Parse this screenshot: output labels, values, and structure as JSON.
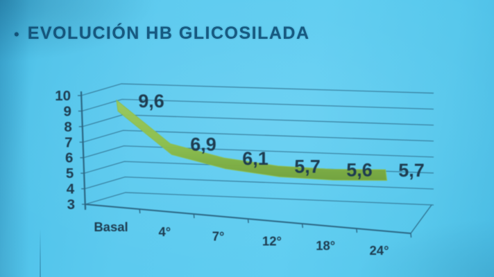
{
  "slide": {
    "bullet": "•",
    "title": "EVOLUCIÓN HB GLICOSILADA"
  },
  "colors": {
    "background": "#5ccaef",
    "title_text": "#175a81",
    "chart_text": "#1e3c50",
    "gridline": "#2f6f8d",
    "axis": "#2b6683",
    "ribbon_top": "#9cc95a",
    "ribbon_mid": "#8fbe4b",
    "ribbon_bottom": "#74a23a"
  },
  "chart_data": {
    "type": "line",
    "style": "3d-ribbon",
    "title": "EVOLUCIÓN HB GLICOSILADA",
    "categories": [
      "Basal",
      "4°",
      "7°",
      "12°",
      "18°",
      "24°"
    ],
    "series": [
      {
        "name": "HB glicosilada",
        "values": [
          9.6,
          6.9,
          6.1,
          5.7,
          5.6,
          5.7
        ]
      }
    ],
    "point_labels": [
      "9,6",
      "6,9",
      "6,1",
      "5,7",
      "5,6",
      "5,7"
    ],
    "y_ticks": [
      "10",
      "9",
      "8",
      "7",
      "6",
      "5",
      "4",
      "3"
    ],
    "ylim": [
      3,
      10
    ],
    "xlabel": "",
    "ylabel": "",
    "grid": true,
    "legend": false,
    "decimal_separator": ","
  }
}
